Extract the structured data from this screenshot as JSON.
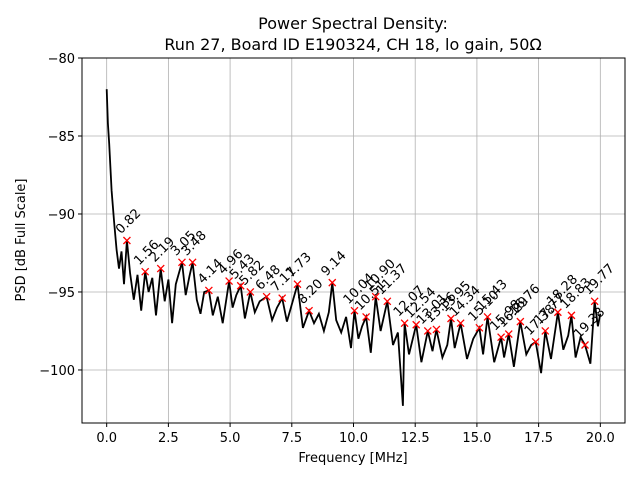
{
  "chart_data": {
    "type": "line",
    "title": "Power Spectral Density:",
    "subtitle": "Run 27, Board ID E190324, CH 18, lo gain, 50Ω",
    "x_label": "Frequency [MHz]",
    "y_label": "PSD [dB Full Scale]",
    "xlim": [
      -1,
      21
    ],
    "ylim": [
      -103.4,
      -80
    ],
    "xticks": [
      {
        "value": 0,
        "label": "0.0"
      },
      {
        "value": 2.5,
        "label": "2.5"
      },
      {
        "value": 5,
        "label": "5.0"
      },
      {
        "value": 7.5,
        "label": "7.5"
      },
      {
        "value": 10,
        "label": "10.0"
      },
      {
        "value": 12.5,
        "label": "12.5"
      },
      {
        "value": 15,
        "label": "15.0"
      },
      {
        "value": 17.5,
        "label": "17.5"
      },
      {
        "value": 20,
        "label": "20.0"
      }
    ],
    "yticks": [
      {
        "value": -100,
        "label": "−100"
      },
      {
        "value": -95,
        "label": "−95"
      },
      {
        "value": -90,
        "label": "−90"
      },
      {
        "value": -85,
        "label": "−85"
      },
      {
        "value": -80,
        "label": "−80"
      }
    ],
    "grid": true,
    "series": [
      {
        "color": "#000000",
        "x": [
          0,
          0.05,
          0.1,
          0.2,
          0.3,
          0.4,
          0.5,
          0.6,
          0.7,
          0.82,
          0.95,
          1.1,
          1.25,
          1.4,
          1.56,
          1.7,
          1.85,
          2.0,
          2.19,
          2.35,
          2.5,
          2.65,
          2.8,
          3.05,
          3.2,
          3.35,
          3.48,
          3.65,
          3.8,
          3.95,
          4.14,
          4.3,
          4.5,
          4.7,
          4.96,
          5.1,
          5.25,
          5.43,
          5.6,
          5.82,
          6.0,
          6.2,
          6.48,
          6.7,
          6.9,
          7.11,
          7.3,
          7.5,
          7.73,
          7.95,
          8.2,
          8.4,
          8.6,
          8.8,
          9.0,
          9.14,
          9.3,
          9.5,
          9.7,
          9.9,
          10.04,
          10.2,
          10.35,
          10.51,
          10.7,
          10.9,
          11.1,
          11.37,
          11.6,
          11.8,
          12.0,
          12.07,
          12.25,
          12.54,
          12.75,
          13.01,
          13.2,
          13.36,
          13.6,
          13.8,
          13.95,
          14.1,
          14.34,
          14.6,
          14.85,
          15.1,
          15.25,
          15.43,
          15.7,
          15.98,
          16.1,
          16.29,
          16.5,
          16.76,
          17.0,
          17.2,
          17.38,
          17.6,
          17.77,
          18.0,
          18.28,
          18.5,
          18.7,
          18.83,
          19.0,
          19.2,
          19.38,
          19.6,
          19.77,
          19.9,
          20.0
        ],
        "values": [
          -82,
          -84.2,
          -85.5,
          -88.5,
          -90.5,
          -92.3,
          -93.5,
          -92.4,
          -94.5,
          -91.7,
          -93.8,
          -95.5,
          -93.9,
          -96.2,
          -93.7,
          -95.0,
          -94.1,
          -96.5,
          -93.5,
          -95.6,
          -94.2,
          -97.0,
          -94.5,
          -93.1,
          -95.2,
          -94.0,
          -93.1,
          -95.5,
          -96.4,
          -95.0,
          -94.9,
          -96.5,
          -95.3,
          -97.0,
          -94.3,
          -96.0,
          -95.2,
          -94.6,
          -96.7,
          -95.0,
          -96.3,
          -95.6,
          -95.3,
          -96.8,
          -96.0,
          -95.4,
          -96.9,
          -95.8,
          -94.5,
          -97.3,
          -96.2,
          -97.0,
          -96.4,
          -97.5,
          -96.3,
          -94.4,
          -96.8,
          -97.6,
          -96.6,
          -98.6,
          -96.2,
          -98.0,
          -97.2,
          -96.6,
          -98.9,
          -95.3,
          -97.5,
          -95.6,
          -98.4,
          -97.6,
          -102.3,
          -97.0,
          -99.0,
          -97.1,
          -99.5,
          -97.5,
          -98.8,
          -97.4,
          -99.2,
          -98.4,
          -96.7,
          -98.6,
          -97.0,
          -99.3,
          -98.0,
          -97.3,
          -99.0,
          -96.6,
          -99.5,
          -97.9,
          -99.2,
          -97.7,
          -99.8,
          -96.9,
          -99.0,
          -98.4,
          -98.2,
          -100.2,
          -97.5,
          -99.3,
          -96.3,
          -98.7,
          -97.8,
          -96.5,
          -99.2,
          -97.9,
          -98.4,
          -99.6,
          -95.6,
          -97.2,
          -96.4
        ]
      }
    ],
    "peaks": {
      "color": "#ff0000",
      "x": [
        0.82,
        1.56,
        2.19,
        3.05,
        3.48,
        4.14,
        4.96,
        5.43,
        5.82,
        6.48,
        7.11,
        7.73,
        8.2,
        9.14,
        10.04,
        10.51,
        10.9,
        11.37,
        12.07,
        12.54,
        13.01,
        13.36,
        13.95,
        14.34,
        15.1,
        15.43,
        15.98,
        16.29,
        16.76,
        17.38,
        17.77,
        18.28,
        18.83,
        19.38,
        19.77
      ],
      "values": [
        -91.7,
        -93.7,
        -93.5,
        -93.1,
        -93.1,
        -94.9,
        -94.3,
        -94.6,
        -95.0,
        -95.3,
        -95.4,
        -94.5,
        -96.2,
        -94.4,
        -96.2,
        -96.6,
        -95.3,
        -95.6,
        -97.0,
        -97.1,
        -97.5,
        -97.4,
        -96.7,
        -97.0,
        -97.3,
        -96.6,
        -97.9,
        -97.7,
        -96.9,
        -98.2,
        -97.5,
        -96.3,
        -96.5,
        -98.4,
        -95.6
      ],
      "labels": [
        "0.82",
        "1.56",
        "2.19",
        "3.05",
        "3.48",
        "4.14",
        "4.96",
        "5.43",
        "5.82",
        "6.48",
        "7.11",
        "7.73",
        "8.20",
        "9.14",
        "10.04",
        "10.51",
        "10.90",
        "11.37",
        "12.07",
        "12.54",
        "13.01",
        "13.36",
        "13.95",
        "14.34",
        "15.10",
        "15.43",
        "15.98",
        "16.29",
        "16.76",
        "17.38",
        "17.77",
        "18.28",
        "18.83",
        "19.38",
        "19.77"
      ]
    }
  }
}
